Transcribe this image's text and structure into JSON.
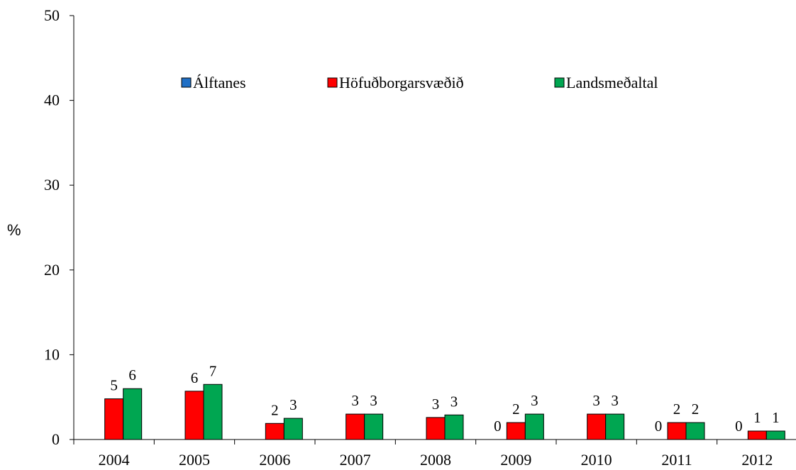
{
  "chart_data": {
    "type": "bar",
    "ylabel": "%",
    "ylim": [
      0,
      50
    ],
    "yticks": [
      0,
      10,
      20,
      30,
      40,
      50
    ],
    "categories": [
      "2004",
      "2005",
      "2006",
      "2007",
      "2008",
      "2009",
      "2010",
      "2011",
      "2012"
    ],
    "series": [
      {
        "name": "Álftanes",
        "color": "#1f6fc5",
        "values": [
          null,
          null,
          null,
          null,
          null,
          0,
          null,
          0,
          0
        ],
        "labels": [
          "",
          "",
          "",
          "",
          "",
          "0",
          "",
          "0",
          "0"
        ]
      },
      {
        "name": "Höfuðborgarsvæðið",
        "color": "#ff0000",
        "values": [
          4.8,
          5.7,
          1.9,
          3.0,
          2.6,
          2.0,
          3.0,
          2.0,
          1.0
        ],
        "labels": [
          "5",
          "6",
          "2",
          "3",
          "3",
          "2",
          "3",
          "2",
          "1"
        ]
      },
      {
        "name": "Landsmeðaltal",
        "color": "#00a651",
        "values": [
          6.0,
          6.5,
          2.5,
          3.0,
          2.9,
          3.0,
          3.0,
          2.0,
          1.0
        ],
        "labels": [
          "6",
          "7",
          "3",
          "3",
          "3",
          "3",
          "3",
          "2",
          "1"
        ]
      }
    ],
    "legend": "top, inside plot",
    "grid": false
  }
}
